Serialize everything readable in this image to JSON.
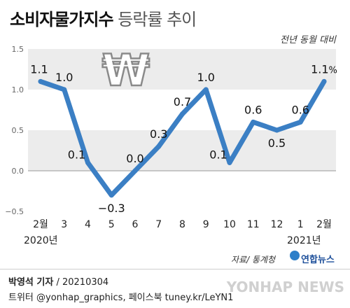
{
  "header": {
    "title_bold": "소비자물가지수",
    "title_light": "등락률 추이",
    "subtitle": "전년 동월 대비"
  },
  "chart_data": {
    "type": "line",
    "categories": [
      "2월",
      "3",
      "4",
      "5",
      "6",
      "7",
      "8",
      "9",
      "10",
      "11",
      "12",
      "1",
      "2월"
    ],
    "values": [
      1.1,
      1.0,
      0.1,
      -0.3,
      0.0,
      0.3,
      0.7,
      1.0,
      0.1,
      0.6,
      0.5,
      0.6,
      1.1
    ],
    "value_labels": [
      "1.1",
      "1.0",
      "0.1",
      "−0.3",
      "0.0",
      "0.3",
      "0.7",
      "1.0",
      "0.1",
      "0.6",
      "0.5",
      "0.6",
      "1.1"
    ],
    "last_unit": "%",
    "y_ticks": [
      "1.5",
      "1.0",
      "0.5",
      "0.0",
      "−0.5"
    ],
    "ylim": [
      -0.5,
      1.5
    ],
    "year_labels": [
      "2020년",
      "2021년"
    ],
    "grid": "horizontal bands",
    "line_color": "#3b7fc4",
    "band_color": "#ececec"
  },
  "footer": {
    "source": "자료/ 통계청",
    "brand": "연합뉴스",
    "reporter": "박영석 기자",
    "date": "/ 20210304",
    "social": "트위터 @yonhap_graphics, 페이스북 tuney.kr/LeYN1",
    "watermark": "YONHAP NEWS"
  }
}
